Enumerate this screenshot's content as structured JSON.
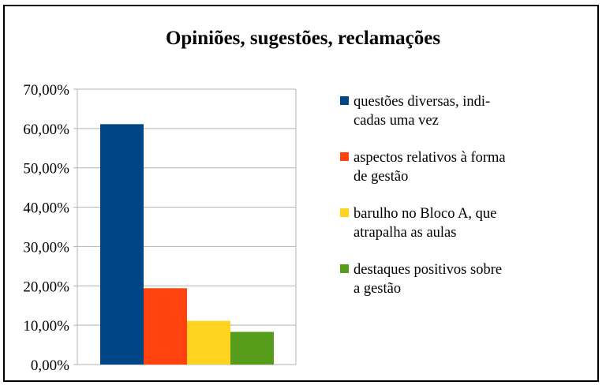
{
  "chart_data": {
    "type": "bar",
    "title": "Opiniões, sugestões, reclamações",
    "xlabel": "",
    "ylabel": "",
    "ylim": [
      0,
      70
    ],
    "y_ticks": [
      "0,00%",
      "10,00%",
      "20,00%",
      "30,00%",
      "40,00%",
      "50,00%",
      "60,00%",
      "70,00%"
    ],
    "grid": true,
    "legend_position": "right",
    "series": [
      {
        "name": "questões diversas, indicadas uma vez",
        "legend_lines": [
          "questões diversas, indi-",
          "cadas uma vez"
        ],
        "value": 61.1,
        "color": "#004586"
      },
      {
        "name": "aspectos relativos à forma de gestão",
        "legend_lines": [
          "aspectos relativos à forma",
          "de gestão"
        ],
        "value": 19.4,
        "color": "#ff420e"
      },
      {
        "name": "barulho no Bloco A, que atrapalha as aulas",
        "legend_lines": [
          "barulho no Bloco A, que",
          "atrapalha as aulas"
        ],
        "value": 11.1,
        "color": "#ffd320"
      },
      {
        "name": "destaques positivos sobre a gestão",
        "legend_lines": [
          "destaques positivos sobre",
          "a gestão"
        ],
        "value": 8.3,
        "color": "#579d1c"
      }
    ]
  }
}
